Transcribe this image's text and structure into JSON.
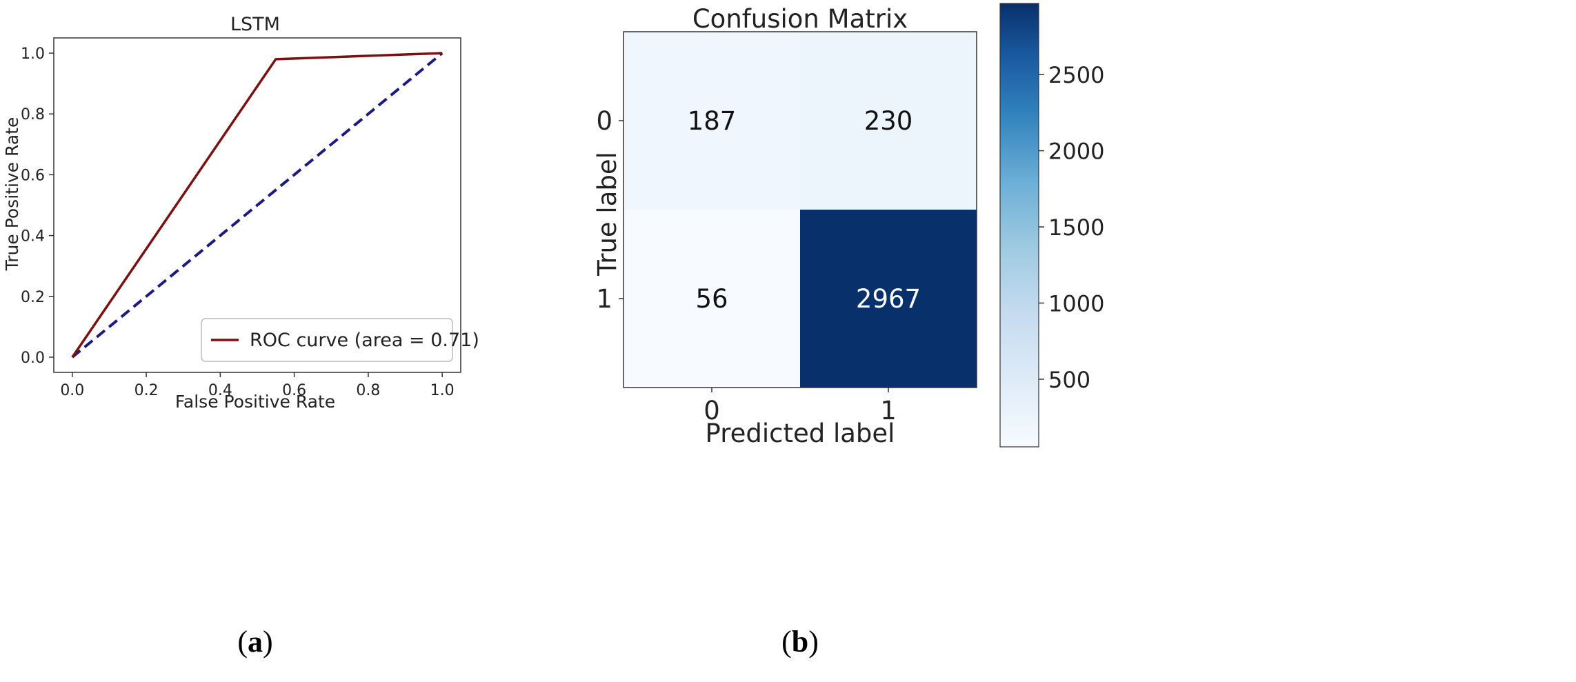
{
  "chart_data": [
    {
      "type": "line",
      "title": "LSTM",
      "xlabel": "False Positive Rate",
      "ylabel": "True Positive Rate",
      "xlim": [
        -0.05,
        1.05
      ],
      "ylim": [
        -0.05,
        1.05
      ],
      "xticks": [
        "0.0",
        "0.2",
        "0.4",
        "0.6",
        "0.8",
        "1.0"
      ],
      "yticks": [
        "0.0",
        "0.2",
        "0.4",
        "0.6",
        "0.8",
        "1.0"
      ],
      "grid": false,
      "legend_position": "lower-right",
      "series": [
        {
          "name": "ROC curve (area = 0.71)",
          "color": "#7b1010",
          "style": "solid",
          "x": [
            0.0,
            0.55,
            1.0
          ],
          "y": [
            0.0,
            0.98,
            1.0
          ]
        },
        {
          "color": "#1a1a80",
          "style": "dashed",
          "x": [
            0.0,
            1.0
          ],
          "y": [
            0.0,
            1.0
          ]
        }
      ],
      "caption_letter": "a"
    },
    {
      "type": "heatmap",
      "title": "Confusion Matrix",
      "xlabel": "Predicted label",
      "ylabel": "True label",
      "x_categories": [
        "0",
        "1"
      ],
      "y_categories": [
        "0",
        "1"
      ],
      "values": [
        [
          187,
          230
        ],
        [
          56,
          2967
        ]
      ],
      "colormap": "Blues",
      "colorbar_ticks": [
        "500",
        "1000",
        "1500",
        "2000",
        "2500"
      ],
      "colorbar_tick_values": [
        500,
        1000,
        1500,
        2000,
        2500
      ],
      "colorbar_range": [
        56,
        2967
      ],
      "caption_letter": "b"
    }
  ]
}
